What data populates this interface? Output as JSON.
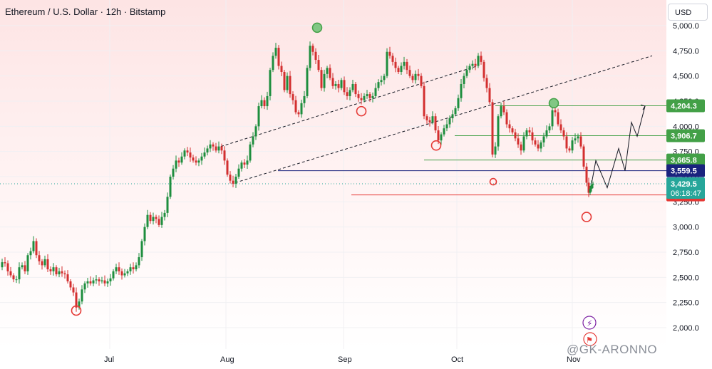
{
  "header": {
    "title": "Ethereum / U.S. Dollar · 12h · Bitstamp",
    "currency": "USD"
  },
  "watermark": "@GK-ARONNO",
  "colors": {
    "up": "#26a69a",
    "down": "#ef5350",
    "candle_up": "#1e8e3e",
    "candle_down": "#d32f2f",
    "support_line": "#e53935",
    "mid_line": "#1a237e",
    "resist_line": "#43a047",
    "marker_green": "#66bb6a",
    "marker_red": "#e53935"
  },
  "chart_data": {
    "type": "candlestick",
    "symbol": "Ethereum / U.S. Dollar",
    "interval": "12h",
    "exchange": "Bitstamp",
    "y_axis": {
      "range": [
        1900,
        5100
      ],
      "ticks": [
        "2,000.0",
        "2,250.0",
        "2,500.0",
        "2,750.0",
        "3,000.0",
        "3,250.0",
        "3,500.0",
        "3,750.0",
        "4,000.0",
        "4,250.0",
        "4,500.0",
        "4,750.0",
        "5,000.0"
      ]
    },
    "x_axis": {
      "ticks": [
        "Jul",
        "Aug",
        "Sep",
        "Oct",
        "Nov"
      ]
    },
    "price_path": [
      [
        0,
        2600
      ],
      [
        4,
        2650
      ],
      [
        8,
        2640
      ],
      [
        12,
        2560
      ],
      [
        16,
        2520
      ],
      [
        20,
        2480
      ],
      [
        24,
        2480
      ],
      [
        28,
        2600
      ],
      [
        32,
        2620
      ],
      [
        36,
        2560
      ],
      [
        40,
        2720
      ],
      [
        44,
        2760
      ],
      [
        48,
        2860
      ],
      [
        52,
        2720
      ],
      [
        56,
        2660
      ],
      [
        60,
        2620
      ],
      [
        64,
        2680
      ],
      [
        68,
        2580
      ],
      [
        72,
        2560
      ],
      [
        76,
        2600
      ],
      [
        80,
        2530
      ],
      [
        84,
        2560
      ],
      [
        88,
        2540
      ],
      [
        92,
        2530
      ],
      [
        96,
        2460
      ],
      [
        100,
        2400
      ],
      [
        104,
        2350
      ],
      [
        108,
        2200
      ],
      [
        112,
        2260
      ],
      [
        116,
        2380
      ],
      [
        120,
        2440
      ],
      [
        124,
        2460
      ],
      [
        128,
        2440
      ],
      [
        132,
        2470
      ],
      [
        136,
        2480
      ],
      [
        140,
        2460
      ],
      [
        144,
        2470
      ],
      [
        148,
        2440
      ],
      [
        152,
        2460
      ],
      [
        156,
        2490
      ],
      [
        160,
        2560
      ],
      [
        164,
        2600
      ],
      [
        168,
        2560
      ],
      [
        172,
        2520
      ],
      [
        176,
        2540
      ],
      [
        180,
        2560
      ],
      [
        184,
        2600
      ],
      [
        188,
        2580
      ],
      [
        192,
        2620
      ],
      [
        196,
        2700
      ],
      [
        200,
        2860
      ],
      [
        204,
        3000
      ],
      [
        208,
        3120
      ],
      [
        212,
        3060
      ],
      [
        216,
        3100
      ],
      [
        220,
        3080
      ],
      [
        224,
        3020
      ],
      [
        228,
        3100
      ],
      [
        232,
        3140
      ],
      [
        236,
        3300
      ],
      [
        240,
        3500
      ],
      [
        244,
        3580
      ],
      [
        248,
        3660
      ],
      [
        252,
        3640
      ],
      [
        256,
        3700
      ],
      [
        260,
        3760
      ],
      [
        264,
        3740
      ],
      [
        268,
        3690
      ],
      [
        272,
        3660
      ],
      [
        276,
        3640
      ],
      [
        280,
        3660
      ],
      [
        284,
        3700
      ],
      [
        288,
        3740
      ],
      [
        292,
        3780
      ],
      [
        296,
        3820
      ],
      [
        300,
        3800
      ],
      [
        304,
        3760
      ],
      [
        308,
        3800
      ],
      [
        312,
        3760
      ],
      [
        316,
        3660
      ],
      [
        320,
        3520
      ],
      [
        324,
        3460
      ],
      [
        328,
        3430
      ],
      [
        332,
        3500
      ],
      [
        336,
        3580
      ],
      [
        340,
        3640
      ],
      [
        344,
        3620
      ],
      [
        348,
        3660
      ],
      [
        352,
        3820
      ],
      [
        356,
        3900
      ],
      [
        360,
        4000
      ],
      [
        364,
        4200
      ],
      [
        368,
        4260
      ],
      [
        372,
        4200
      ],
      [
        376,
        4300
      ],
      [
        380,
        4560
      ],
      [
        384,
        4700
      ],
      [
        388,
        4780
      ],
      [
        392,
        4600
      ],
      [
        396,
        4540
      ],
      [
        400,
        4360
      ],
      [
        404,
        4500
      ],
      [
        408,
        4320
      ],
      [
        412,
        4260
      ],
      [
        416,
        4140
      ],
      [
        420,
        4120
      ],
      [
        424,
        4230
      ],
      [
        428,
        4300
      ],
      [
        432,
        4580
      ],
      [
        436,
        4800
      ],
      [
        440,
        4740
      ],
      [
        444,
        4660
      ],
      [
        448,
        4560
      ],
      [
        452,
        4380
      ],
      [
        456,
        4520
      ],
      [
        460,
        4580
      ],
      [
        464,
        4480
      ],
      [
        468,
        4400
      ],
      [
        472,
        4420
      ],
      [
        476,
        4380
      ],
      [
        480,
        4460
      ],
      [
        484,
        4340
      ],
      [
        488,
        4300
      ],
      [
        492,
        4360
      ],
      [
        496,
        4420
      ],
      [
        500,
        4320
      ],
      [
        504,
        4280
      ],
      [
        508,
        4260
      ],
      [
        512,
        4300
      ],
      [
        516,
        4320
      ],
      [
        520,
        4280
      ],
      [
        524,
        4300
      ],
      [
        528,
        4380
      ],
      [
        532,
        4440
      ],
      [
        536,
        4460
      ],
      [
        540,
        4500
      ],
      [
        544,
        4740
      ],
      [
        548,
        4700
      ],
      [
        552,
        4640
      ],
      [
        556,
        4580
      ],
      [
        560,
        4540
      ],
      [
        564,
        4600
      ],
      [
        568,
        4640
      ],
      [
        572,
        4560
      ],
      [
        576,
        4500
      ],
      [
        580,
        4460
      ],
      [
        584,
        4520
      ],
      [
        588,
        4500
      ],
      [
        592,
        4400
      ],
      [
        596,
        4100
      ],
      [
        600,
        4060
      ],
      [
        604,
        4040
      ],
      [
        608,
        4100
      ],
      [
        612,
        3960
      ],
      [
        616,
        3860
      ],
      [
        620,
        3920
      ],
      [
        624,
        3980
      ],
      [
        628,
        4020
      ],
      [
        632,
        4080
      ],
      [
        636,
        4120
      ],
      [
        640,
        4180
      ],
      [
        644,
        4280
      ],
      [
        648,
        4420
      ],
      [
        652,
        4500
      ],
      [
        656,
        4560
      ],
      [
        660,
        4600
      ],
      [
        664,
        4620
      ],
      [
        668,
        4600
      ],
      [
        672,
        4700
      ],
      [
        676,
        4640
      ],
      [
        680,
        4480
      ],
      [
        684,
        4380
      ],
      [
        688,
        4240
      ],
      [
        692,
        3720
      ],
      [
        696,
        3800
      ],
      [
        700,
        4100
      ],
      [
        704,
        4200
      ],
      [
        708,
        4140
      ],
      [
        712,
        4020
      ],
      [
        716,
        3980
      ],
      [
        720,
        3940
      ],
      [
        724,
        3880
      ],
      [
        728,
        3820
      ],
      [
        732,
        3760
      ],
      [
        736,
        3900
      ],
      [
        740,
        3960
      ],
      [
        744,
        3940
      ],
      [
        748,
        3860
      ],
      [
        752,
        3820
      ],
      [
        756,
        3780
      ],
      [
        760,
        3840
      ],
      [
        764,
        3900
      ],
      [
        768,
        3960
      ],
      [
        772,
        4000
      ],
      [
        776,
        4160
      ],
      [
        780,
        4140
      ],
      [
        784,
        4020
      ],
      [
        788,
        3960
      ],
      [
        792,
        3900
      ],
      [
        796,
        3780
      ],
      [
        800,
        3760
      ],
      [
        804,
        3860
      ],
      [
        808,
        3880
      ],
      [
        812,
        3900
      ],
      [
        816,
        3800
      ],
      [
        820,
        3600
      ],
      [
        824,
        3440
      ],
      [
        826,
        3340
      ],
      [
        828,
        3380
      ],
      [
        830,
        3420
      ],
      [
        832,
        3430
      ]
    ],
    "channel_lines": [
      {
        "style": "dashed",
        "from": {
          "x_date": "Aug",
          "y": 3440
        },
        "to": {
          "x_date": "Nov",
          "y": 4700
        }
      },
      {
        "style": "dashed",
        "from": {
          "x_date": "Aug",
          "y": 3800
        },
        "to": {
          "x_date": "Oct",
          "y": 4600
        }
      }
    ],
    "horizontal_levels": [
      {
        "price": 4204.3,
        "label": "4,204.3",
        "color": "#43a047"
      },
      {
        "price": 3906.7,
        "label": "3,906.7",
        "color": "#43a047"
      },
      {
        "price": 3665.8,
        "label": "3,665.8",
        "color": "#43a047"
      },
      {
        "price": 3559.5,
        "label": "3,559.5",
        "color": "#1a237e"
      },
      {
        "price": 3318.6,
        "label": "3,318.6",
        "color": "#e53935"
      }
    ],
    "current_price": {
      "label": "3,429.5",
      "countdown": "06:18:47",
      "color": "#26a69a"
    },
    "projection_path": [
      [
        3430,
        "now"
      ],
      [
        3660,
        1
      ],
      [
        3390,
        2
      ],
      [
        3780,
        3
      ],
      [
        3560,
        4
      ],
      [
        4040,
        5
      ],
      [
        3900,
        6
      ],
      [
        4200,
        7
      ]
    ],
    "markers": [
      {
        "type": "low",
        "price": 2170,
        "color": "red"
      },
      {
        "type": "high",
        "price": 4980,
        "color": "green"
      },
      {
        "type": "low",
        "price": 4150,
        "color": "red"
      },
      {
        "type": "low",
        "price": 3810,
        "color": "red"
      },
      {
        "type": "low",
        "price": 3450,
        "color": "red"
      },
      {
        "type": "high",
        "price": 4230,
        "color": "green"
      },
      {
        "type": "low",
        "price": 3100,
        "color": "red"
      }
    ]
  }
}
